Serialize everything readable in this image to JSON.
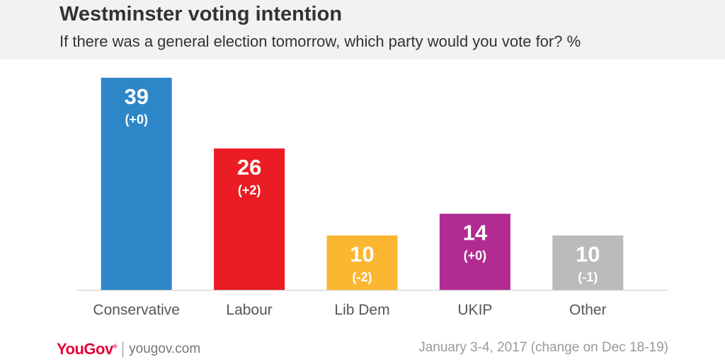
{
  "header": {
    "title": "Westminster voting intention",
    "subtitle": "If there was a general election tomorrow, which party would you vote for? %"
  },
  "footer": {
    "logo": "YouGov",
    "website": "yougov.com",
    "note": "January 3-4, 2017 (change on Dec 18-19)"
  },
  "chart_data": {
    "type": "bar",
    "title": "Westminster voting intention",
    "subtitle": "If there was a general election tomorrow, which party would you vote for? %",
    "categories": [
      "Conservative",
      "Labour",
      "Lib Dem",
      "UKIP",
      "Other"
    ],
    "values": [
      39,
      26,
      10,
      14,
      10
    ],
    "change_labels": [
      "(+0)",
      "(+2)",
      "(-2)",
      "(+0)",
      "(-1)"
    ],
    "colors": [
      "#2d86c8",
      "#ec1c24",
      "#fbb731",
      "#b12b92",
      "#bbbbbb"
    ],
    "ylim": [
      0,
      39
    ],
    "grid": false,
    "legend": "none"
  }
}
